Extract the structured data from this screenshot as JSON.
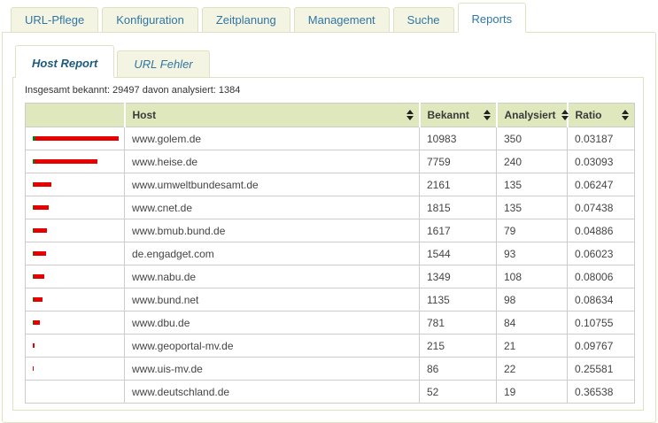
{
  "colors": {
    "tab_bg": "#f4f4e3",
    "panel_border": "#e0e0c2",
    "tab_text": "#3076a3",
    "subtab_active_text": "#1c5a7d",
    "header_bg": "#dfe8bd",
    "table_border": "#cccccc",
    "cell_text": "#444444",
    "bar_red": "#e60000",
    "bar_green": "#0a7a0a"
  },
  "main_tabs": [
    {
      "id": "url-pflege",
      "label": "URL-Pflege",
      "active": false
    },
    {
      "id": "konfiguration",
      "label": "Konfiguration",
      "active": false
    },
    {
      "id": "zeitplanung",
      "label": "Zeitplanung",
      "active": false
    },
    {
      "id": "management",
      "label": "Management",
      "active": false
    },
    {
      "id": "suche",
      "label": "Suche",
      "active": false
    },
    {
      "id": "reports",
      "label": "Reports",
      "active": true
    }
  ],
  "sub_tabs": [
    {
      "id": "host-report",
      "label": "Host Report",
      "active": true
    },
    {
      "id": "url-fehler",
      "label": "URL Fehler",
      "active": false
    }
  ],
  "summary": "Insgesamt bekannt: 29497 davon analysiert: 1384",
  "table": {
    "columns": [
      {
        "id": "bar",
        "label": "",
        "sortable": false
      },
      {
        "id": "host",
        "label": "Host",
        "sortable": true
      },
      {
        "id": "bekannt",
        "label": "Bekannt",
        "sortable": true
      },
      {
        "id": "analysiert",
        "label": "Analysiert",
        "sortable": true
      },
      {
        "id": "ratio",
        "label": "Ratio",
        "sortable": true
      }
    ],
    "rows": [
      {
        "host": "www.golem.de",
        "bekannt": 10983,
        "analysiert": 350,
        "ratio": "0.03187"
      },
      {
        "host": "www.heise.de",
        "bekannt": 7759,
        "analysiert": 240,
        "ratio": "0.03093"
      },
      {
        "host": "www.umweltbundesamt.de",
        "bekannt": 2161,
        "analysiert": 135,
        "ratio": "0.06247"
      },
      {
        "host": "www.cnet.de",
        "bekannt": 1815,
        "analysiert": 135,
        "ratio": "0.07438"
      },
      {
        "host": "www.bmub.bund.de",
        "bekannt": 1617,
        "analysiert": 79,
        "ratio": "0.04886"
      },
      {
        "host": "de.engadget.com",
        "bekannt": 1544,
        "analysiert": 93,
        "ratio": "0.06023"
      },
      {
        "host": "www.nabu.de",
        "bekannt": 1349,
        "analysiert": 108,
        "ratio": "0.08006"
      },
      {
        "host": "www.bund.net",
        "bekannt": 1135,
        "analysiert": 98,
        "ratio": "0.08634"
      },
      {
        "host": "www.dbu.de",
        "bekannt": 781,
        "analysiert": 84,
        "ratio": "0.10755"
      },
      {
        "host": "www.geoportal-mv.de",
        "bekannt": 215,
        "analysiert": 21,
        "ratio": "0.09767"
      },
      {
        "host": "www.uis-mv.de",
        "bekannt": 86,
        "analysiert": 22,
        "ratio": "0.25581"
      },
      {
        "host": "www.deutschland.de",
        "bekannt": 52,
        "analysiert": 19,
        "ratio": "0.36538"
      }
    ]
  },
  "chart_data": {
    "type": "bar",
    "orientation": "horizontal",
    "categories": [
      "www.golem.de",
      "www.heise.de",
      "www.umweltbundesamt.de",
      "www.cnet.de",
      "www.bmub.bund.de",
      "de.engadget.com",
      "www.nabu.de",
      "www.bund.net",
      "www.dbu.de",
      "www.geoportal-mv.de",
      "www.uis-mv.de",
      "www.deutschland.de"
    ],
    "series": [
      {
        "name": "Analysiert",
        "color": "#0a7a0a",
        "values": [
          350,
          240,
          135,
          135,
          79,
          93,
          108,
          98,
          84,
          21,
          22,
          19
        ]
      },
      {
        "name": "Bekannt",
        "color": "#e60000",
        "values": [
          10983,
          7759,
          2161,
          1815,
          1617,
          1544,
          1349,
          1135,
          781,
          215,
          86,
          52
        ]
      }
    ],
    "title": "",
    "xlabel": "",
    "ylabel": "",
    "xlim": [
      0,
      10983
    ],
    "grid": false,
    "legend_position": "none"
  }
}
